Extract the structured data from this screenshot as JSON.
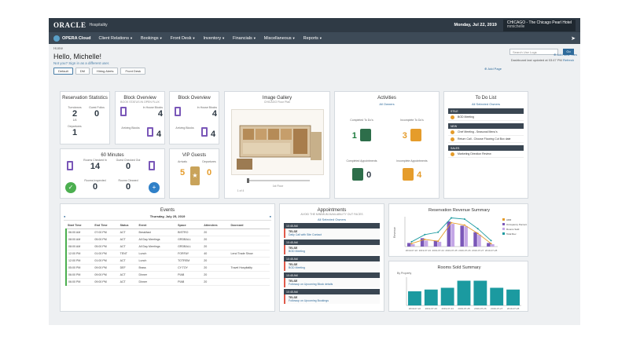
{
  "topbar": {
    "logo": "ORACLE",
    "logo_sub": "Hospitality",
    "date": "Monday, Jul 22, 2019",
    "hotel_code": "CHICAGO - The Chicago Pearl Hotel",
    "hotel_user": "mmichelle"
  },
  "nav": {
    "brand": "OPERA Cloud",
    "items": [
      "Client Relations",
      "Bookings",
      "Front Desk",
      "Inventory",
      "Financials",
      "Miscellaneous",
      "Reports"
    ]
  },
  "header": {
    "breadcrumb": "Home",
    "greeting": "Hello, Michelle!",
    "not_you": "Not you? Sign in as a different user.",
    "tabs": [
      "Default",
      "DM",
      "Hiring Alerts",
      "Front Desk"
    ],
    "search_placeholder": "Search Use Logs",
    "go": "Go",
    "updated": "Dashboard last updated at 03:47 PM",
    "refresh": "Refresh",
    "add_page": "Add Page",
    "add_tiles": "Add New Tiles"
  },
  "reservation_stats": {
    "title": "Reservation Statistics",
    "items": [
      {
        "label": "Turndowns",
        "value": "2"
      },
      {
        "label": "Guest Folios",
        "value": "0"
      },
      {
        "label": "Departures",
        "value": "1"
      }
    ],
    "sub": "1/6"
  },
  "block_overview_1": {
    "title": "Block Overview",
    "sub": "BOOK STATUS IN OPEN FLUX",
    "items": [
      {
        "label": "In House Blocks",
        "value": "4"
      },
      {
        "label": "Arriving Blocks",
        "value": "4"
      }
    ]
  },
  "block_overview_2": {
    "title": "Block Overview",
    "items": [
      {
        "label": "In House Blocks",
        "value": "4"
      },
      {
        "label": "Arriving Blocks",
        "value": "4"
      }
    ]
  },
  "image_gallery": {
    "title": "Image Gallery",
    "sub": "CHICAGO Floor Plan",
    "caption": "1st Floor",
    "page": "1 of 4"
  },
  "activities": {
    "title": "Activities",
    "selected": "All Owners",
    "items": [
      {
        "label": "Completed To Do's",
        "value": "1"
      },
      {
        "label": "Incomplete To Do's",
        "value": "3"
      },
      {
        "label": "Completed Appointments",
        "value": "0"
      },
      {
        "label": "Incomplete Appointments",
        "value": "4"
      }
    ]
  },
  "todo": {
    "title": "To Do List",
    "selected": "All Selected Owners",
    "groups": [
      {
        "name": "STILE",
        "items": [
          "BOD Meeting"
        ]
      },
      {
        "name": "NEW",
        "items": [
          "Chef Meeting - Seasonal Menu's",
          "Return Call - Choose Flooring Cut Box date"
        ]
      },
      {
        "name": "SALES",
        "items": [
          "Marketing Direction Review"
        ]
      }
    ]
  },
  "sixty_minutes": {
    "title": "60 Minutes",
    "items": [
      {
        "label": "Rooms Checked In",
        "value": "14"
      },
      {
        "label": "Guest Checked Out",
        "value": "0"
      },
      {
        "label": "Rooms Inspected",
        "value": "0"
      },
      {
        "label": "Rooms Cleaned",
        "value": "0"
      }
    ]
  },
  "vip_guests": {
    "title": "VIP Guests",
    "items": [
      {
        "label": "Arrivals",
        "value": "5"
      },
      {
        "label": "Departures",
        "value": "0"
      }
    ]
  },
  "events": {
    "title": "Events",
    "date": "Thursday, July 25, 2019",
    "columns": [
      "Start Time",
      "End Time",
      "Status",
      "Event",
      "Space",
      "Attendees",
      "Doorcard"
    ],
    "rows": [
      [
        "06:00 AM",
        "07:00 PM",
        "ACT",
        "Breakfast",
        "BISTRO",
        "20",
        ""
      ],
      [
        "08:00 AM",
        "05:00 PM",
        "ACT",
        "All Day Meetings",
        "GRDBALL",
        "20",
        ""
      ],
      [
        "08:00 AM",
        "05:00 PM",
        "ACT",
        "All Day Meetings",
        "GRDBALL",
        "20",
        ""
      ],
      [
        "12:00 PM",
        "01:00 PM",
        "TENT",
        "Lunch",
        "FORFAY",
        "40",
        "Lend Trade Show"
      ],
      [
        "12:00 PM",
        "01:00 PM",
        "ACT",
        "Lunch",
        "TOTREM",
        "20",
        ""
      ],
      [
        "05:00 PM",
        "09:00 PM",
        "DEF",
        "Brass",
        "CY.TOY",
        "20",
        "Travel Hospitality"
      ],
      [
        "06:00 PM",
        "09:00 PM",
        "ACT",
        "Dinner",
        "PIAB",
        "20",
        ""
      ],
      [
        "06:00 PM",
        "09:00 PM",
        "ACT",
        "Dinner",
        "PIAB",
        "20",
        ""
      ]
    ]
  },
  "appointments": {
    "title": "Appointments",
    "sub": "AVOID THE MINIMUM AVAILABILITY OUT FACES",
    "selected": "All Selected Owners",
    "items": [
      {
        "time": "10:45 AM",
        "who": "TELSE",
        "what": "Daily Call with Site Contact"
      },
      {
        "time": "10:45 AM",
        "who": "TELSE",
        "what": "BOD Meeting"
      },
      {
        "time": "10:45 AM",
        "who": "TELSE",
        "what": "BOD Meeting"
      },
      {
        "time": "10:45 AM",
        "who": "TELSE",
        "what": "Followup on Upcoming Block details"
      },
      {
        "time": "10:45 AM",
        "who": "TELSE",
        "what": "Followup on Upcoming Bookings"
      }
    ]
  },
  "colors": {
    "topbar": "#2f3a45",
    "purple": "#7a57b8",
    "orange": "#e59c2b",
    "green": "#4caf50",
    "teal": "#1b9aa0"
  },
  "chart_data": [
    {
      "type": "bar",
      "title": "Reservation Revenue Summary",
      "ylabel": "Revenue",
      "categories": [
        "2019-07-22",
        "2019-07-23",
        "2019-07-24",
        "2019-07-25",
        "2019-07-26",
        "2019-07-27",
        "2019-07-28"
      ],
      "series": [
        {
          "name": "ADR",
          "values": [
            5,
            12,
            9,
            40,
            36,
            22,
            5
          ]
        },
        {
          "name": "Occupancy Percent",
          "values": [
            6,
            14,
            10,
            42,
            35,
            24,
            6
          ]
        },
        {
          "name": "Rooms Sold",
          "values": [
            4,
            10,
            8,
            38,
            34,
            20,
            4
          ]
        },
        {
          "name": "Total Rev",
          "values": [
            8,
            20,
            24,
            48,
            46,
            30,
            10
          ]
        }
      ],
      "legend": "right"
    },
    {
      "type": "bar",
      "title": "Rooms Sold Summary",
      "xlabel": "By Property",
      "categories": [
        "2019-07-22",
        "2019-07-23",
        "2019-07-24",
        "2019-07-25",
        "2019-07-26",
        "2019-07-27",
        "2019-07-28"
      ],
      "values": [
        8,
        9,
        10,
        14,
        14,
        10,
        9
      ],
      "ylim": [
        0,
        16
      ]
    }
  ]
}
